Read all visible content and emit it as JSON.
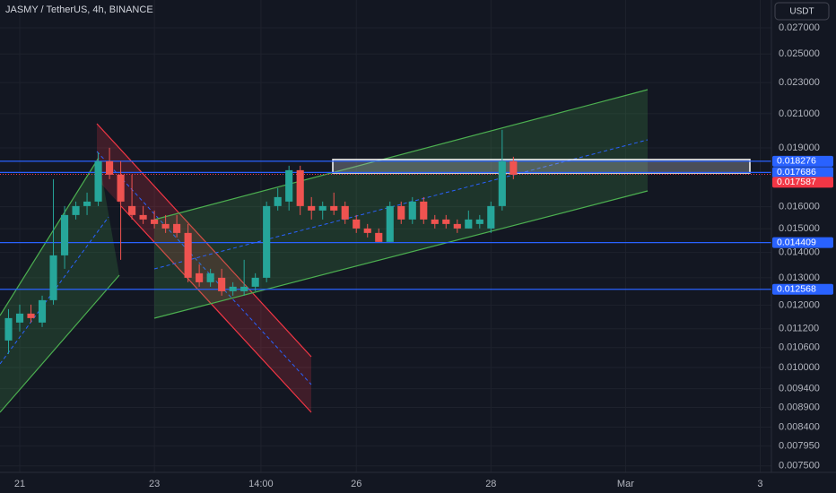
{
  "chart_data": {
    "type": "candlestick",
    "title": "JASMY / TetherUS, 4h, BINANCE",
    "currency_label": "USDT",
    "log_scale": true,
    "grid": true,
    "up_color": "#26a69a",
    "down_color": "#ef5350",
    "x": [
      -1,
      0,
      1,
      2,
      3,
      4,
      5,
      6,
      7,
      8,
      9,
      10,
      11,
      12,
      13,
      14,
      15,
      16,
      17,
      18,
      19,
      20,
      21,
      22,
      23,
      24,
      25,
      26,
      27,
      28,
      29,
      30,
      31,
      32,
      33,
      34,
      35,
      36,
      37,
      38,
      39,
      40,
      41,
      42,
      43,
      44
    ],
    "open": [
      0.010822,
      0.011404,
      0.011707,
      0.011404,
      0.012176,
      0.01388,
      0.015617,
      0.016032,
      0.016243,
      0.018276,
      0.017571,
      0.016032,
      0.015617,
      0.015414,
      0.015213,
      0.015213,
      0.01482,
      0.013172,
      0.012831,
      0.013,
      0.012499,
      0.012499,
      0.012664,
      0.013,
      0.016032,
      0.016243,
      0.017803,
      0.016032,
      0.015823,
      0.016032,
      0.016032,
      0.015414,
      0.015015,
      0.01482,
      0.014437,
      0.016032,
      0.015414,
      0.016243,
      0.015414,
      0.015414,
      0.015213,
      0.015015,
      0.015213,
      0.015015,
      0.016032,
      0.018276
    ],
    "high": [
      0.011861,
      0.012018,
      0.012018,
      0.012337,
      0.017342,
      0.016032,
      0.016243,
      0.016674,
      0.018761,
      0.019008,
      0.018276,
      0.017571,
      0.016032,
      0.015823,
      0.015617,
      0.015617,
      0.015213,
      0.013521,
      0.013345,
      0.013345,
      0.012831,
      0.0137,
      0.013172,
      0.016243,
      0.016894,
      0.018038,
      0.018038,
      0.016457,
      0.016243,
      0.016674,
      0.016243,
      0.015617,
      0.015213,
      0.015015,
      0.016243,
      0.016243,
      0.016457,
      0.016457,
      0.015617,
      0.015617,
      0.015414,
      0.015823,
      0.015617,
      0.016243,
      0.020031,
      0.018517
    ],
    "low": [
      0.010405,
      0.011109,
      0.011404,
      0.011256,
      0.012018,
      0.013345,
      0.015414,
      0.015617,
      0.016032,
      0.017342,
      0.0137,
      0.015414,
      0.015213,
      0.015015,
      0.01482,
      0.014627,
      0.012831,
      0.012664,
      0.012664,
      0.012337,
      0.012337,
      0.012337,
      0.012499,
      0.012831,
      0.015823,
      0.015823,
      0.015617,
      0.015414,
      0.015414,
      0.015617,
      0.015213,
      0.01482,
      0.014627,
      0.014437,
      0.014437,
      0.015213,
      0.015213,
      0.015213,
      0.015015,
      0.015015,
      0.01482,
      0.015015,
      0.015015,
      0.01482,
      0.015823,
      0.017342
    ],
    "close": [
      0.011554,
      0.011707,
      0.011554,
      0.012176,
      0.01388,
      0.015617,
      0.016032,
      0.016243,
      0.018276,
      0.017571,
      0.016243,
      0.015617,
      0.015414,
      0.015213,
      0.015015,
      0.01482,
      0.013,
      0.012831,
      0.013172,
      0.012499,
      0.012664,
      0.012664,
      0.013,
      0.016032,
      0.016457,
      0.017803,
      0.016032,
      0.015823,
      0.016032,
      0.015823,
      0.015414,
      0.015015,
      0.01482,
      0.014437,
      0.016032,
      0.015414,
      0.016243,
      0.015414,
      0.015213,
      0.015213,
      0.015015,
      0.015414,
      0.015414,
      0.016032,
      0.018276,
      0.017571
    ],
    "xlim": [
      -1.76,
      67
    ],
    "xticks": [
      {
        "value": 0,
        "label": "21"
      },
      {
        "value": 12,
        "label": "23"
      },
      {
        "value": 21.5,
        "label": "14:00"
      },
      {
        "value": 30,
        "label": "26"
      },
      {
        "value": 42,
        "label": "28"
      },
      {
        "value": 54,
        "label": "Mar"
      },
      {
        "value": 66,
        "label": "3"
      }
    ],
    "ylim": [
      0.00736,
      0.02928
    ],
    "yticks": [
      {
        "value": 0.027,
        "label": "0.027000"
      },
      {
        "value": 0.025,
        "label": "0.025000"
      },
      {
        "value": 0.023,
        "label": "0.023000"
      },
      {
        "value": 0.021,
        "label": "0.021000"
      },
      {
        "value": 0.019,
        "label": "0.019000"
      },
      {
        "value": 0.016,
        "label": "0.016000"
      },
      {
        "value": 0.015,
        "label": "0.015000"
      },
      {
        "value": 0.014,
        "label": "0.014000"
      },
      {
        "value": 0.013,
        "label": "0.013000"
      },
      {
        "value": 0.012,
        "label": "0.012000"
      },
      {
        "value": 0.0112,
        "label": "0.011200"
      },
      {
        "value": 0.0106,
        "label": "0.010600"
      },
      {
        "value": 0.01,
        "label": "0.010000"
      },
      {
        "value": 0.0094,
        "label": "0.009400"
      },
      {
        "value": 0.0089,
        "label": "0.008900"
      },
      {
        "value": 0.0084,
        "label": "0.008400"
      },
      {
        "value": 0.00795,
        "label": "0.007950"
      },
      {
        "value": 0.0075,
        "label": "0.007500"
      }
    ],
    "price_lines": [
      {
        "value": 0.018276,
        "color": "#2962ff"
      },
      {
        "value": 0.017686,
        "color": "#2962ff"
      },
      {
        "value": 0.014409,
        "color": "#2962ff"
      },
      {
        "value": 0.012568,
        "color": "#2962ff"
      }
    ],
    "last_price": {
      "value": 0.017587,
      "color": "#f23645"
    }
  }
}
